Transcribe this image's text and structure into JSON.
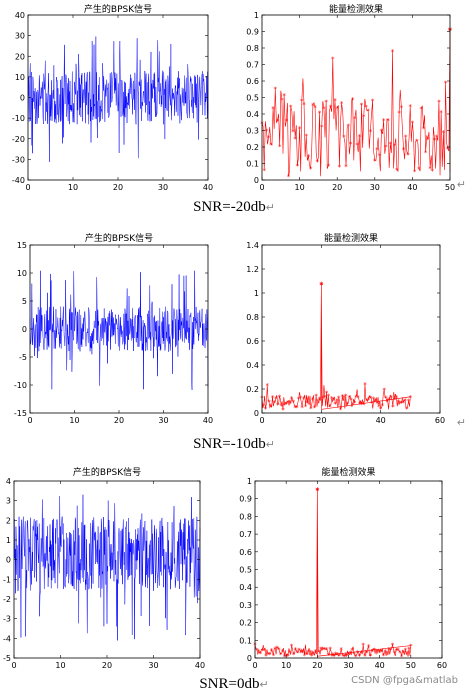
{
  "chart_data": [
    {
      "id": "p1l",
      "type": "line",
      "title": "产生的BPSK信号",
      "xlabel": "",
      "ylabel": "",
      "xlim": [
        0,
        40
      ],
      "ylim": [
        -40,
        40
      ],
      "xticks": [
        "0",
        "10",
        "20",
        "30",
        "40"
      ],
      "yticks": [
        "-40",
        "-30",
        "-20",
        "-10",
        "0",
        "10",
        "20",
        "30",
        "40"
      ],
      "series": [
        {
          "color": "#0000ff",
          "band": {
            "x": [
              0,
              40
            ],
            "core": [
              -13,
              13
            ],
            "extreme": [
              -33,
              34
            ]
          }
        }
      ]
    },
    {
      "id": "p1r",
      "type": "line",
      "title": "能量检测效果",
      "xlabel": "",
      "ylabel": "",
      "xlim": [
        0,
        50
      ],
      "ylim": [
        0,
        1
      ],
      "xticks": [
        "0",
        "10",
        "20",
        "30",
        "40",
        "50"
      ],
      "yticks": [
        "0",
        "0.1",
        "0.2",
        "0.3",
        "0.4",
        "0.5",
        "0.6",
        "0.7",
        "0.8",
        "0.9",
        "1"
      ],
      "series": [
        {
          "color": "#ff0000",
          "marker": "*",
          "band": {
            "x": [
              0,
              50
            ],
            "core": [
              0.05,
              0.5
            ],
            "extreme": [
              0.02,
              0.8
            ]
          },
          "peaks": [
            {
              "x": 50,
              "y": 0.91
            }
          ]
        }
      ]
    },
    {
      "id": "p2l",
      "type": "line",
      "title": "产生的BPSK信号",
      "xlabel": "",
      "ylabel": "",
      "xlim": [
        0,
        40
      ],
      "ylim": [
        -15,
        15
      ],
      "xticks": [
        "0",
        "10",
        "20",
        "30",
        "40"
      ],
      "yticks": [
        "-15",
        "-10",
        "-5",
        "0",
        "5",
        "10",
        "15"
      ],
      "series": [
        {
          "color": "#0000ff",
          "band": {
            "x": [
              0,
              40
            ],
            "core": [
              -4,
              4
            ],
            "extreme": [
              -11,
              11
            ]
          }
        }
      ]
    },
    {
      "id": "p2r",
      "type": "line",
      "title": "能量检测效果",
      "xlabel": "",
      "ylabel": "",
      "xlim": [
        0,
        60
      ],
      "ylim": [
        0,
        1.4
      ],
      "xticks": [
        "0",
        "20",
        "40",
        "60"
      ],
      "yticks": [
        "0",
        "0.2",
        "0.4",
        "0.6",
        "0.8",
        "1",
        "1.2",
        "1.4"
      ],
      "series": [
        {
          "color": "#ff0000",
          "marker": "*",
          "band": {
            "x": [
              0,
              50
            ],
            "core": [
              0.03,
              0.15
            ],
            "extreme": [
              0.01,
              0.25
            ]
          },
          "peaks": [
            {
              "x": 20,
              "y": 1.07
            }
          ]
        }
      ]
    },
    {
      "id": "p3l",
      "type": "line",
      "title": "产生的BPSK信号",
      "xlabel": "",
      "ylabel": "",
      "xlim": [
        0,
        40
      ],
      "ylim": [
        -5,
        4
      ],
      "xticks": [
        "0",
        "10",
        "20",
        "30",
        "40"
      ],
      "yticks": [
        "-5",
        "-4",
        "-3",
        "-2",
        "-1",
        "0",
        "1",
        "2",
        "3",
        "4"
      ],
      "series": [
        {
          "color": "#0000ff",
          "band": {
            "x": [
              0,
              40
            ],
            "core": [
              -1.6,
              2.2
            ],
            "extreme": [
              -4.2,
              3.6
            ]
          }
        }
      ]
    },
    {
      "id": "p3r",
      "type": "line",
      "title": "能量检测效果",
      "xlabel": "",
      "ylabel": "",
      "xlim": [
        0,
        60
      ],
      "ylim": [
        0,
        1
      ],
      "xticks": [
        "0",
        "10",
        "20",
        "30",
        "40",
        "50",
        "60"
      ],
      "yticks": [
        "0",
        "0.1",
        "0.2",
        "0.3",
        "0.4",
        "0.5",
        "0.6",
        "0.7",
        "0.8",
        "0.9",
        "1"
      ],
      "series": [
        {
          "color": "#ff0000",
          "marker": "*",
          "band": {
            "x": [
              0,
              50
            ],
            "core": [
              0.01,
              0.06
            ],
            "extreme": [
              0.005,
              0.08
            ]
          },
          "peaks": [
            {
              "x": 20,
              "y": 0.95
            }
          ]
        }
      ]
    }
  ],
  "captions": {
    "c1": "SNR=-20db",
    "c2": "SNR=-10db",
    "c3": "SNR=0db",
    "return_mark": "↵",
    "paragraph_mark": "↵"
  },
  "watermark": "CSDN @fpga&matlab",
  "colors": {
    "signal": "#0000ff",
    "energy": "#ff0000",
    "axis": "#000000"
  }
}
